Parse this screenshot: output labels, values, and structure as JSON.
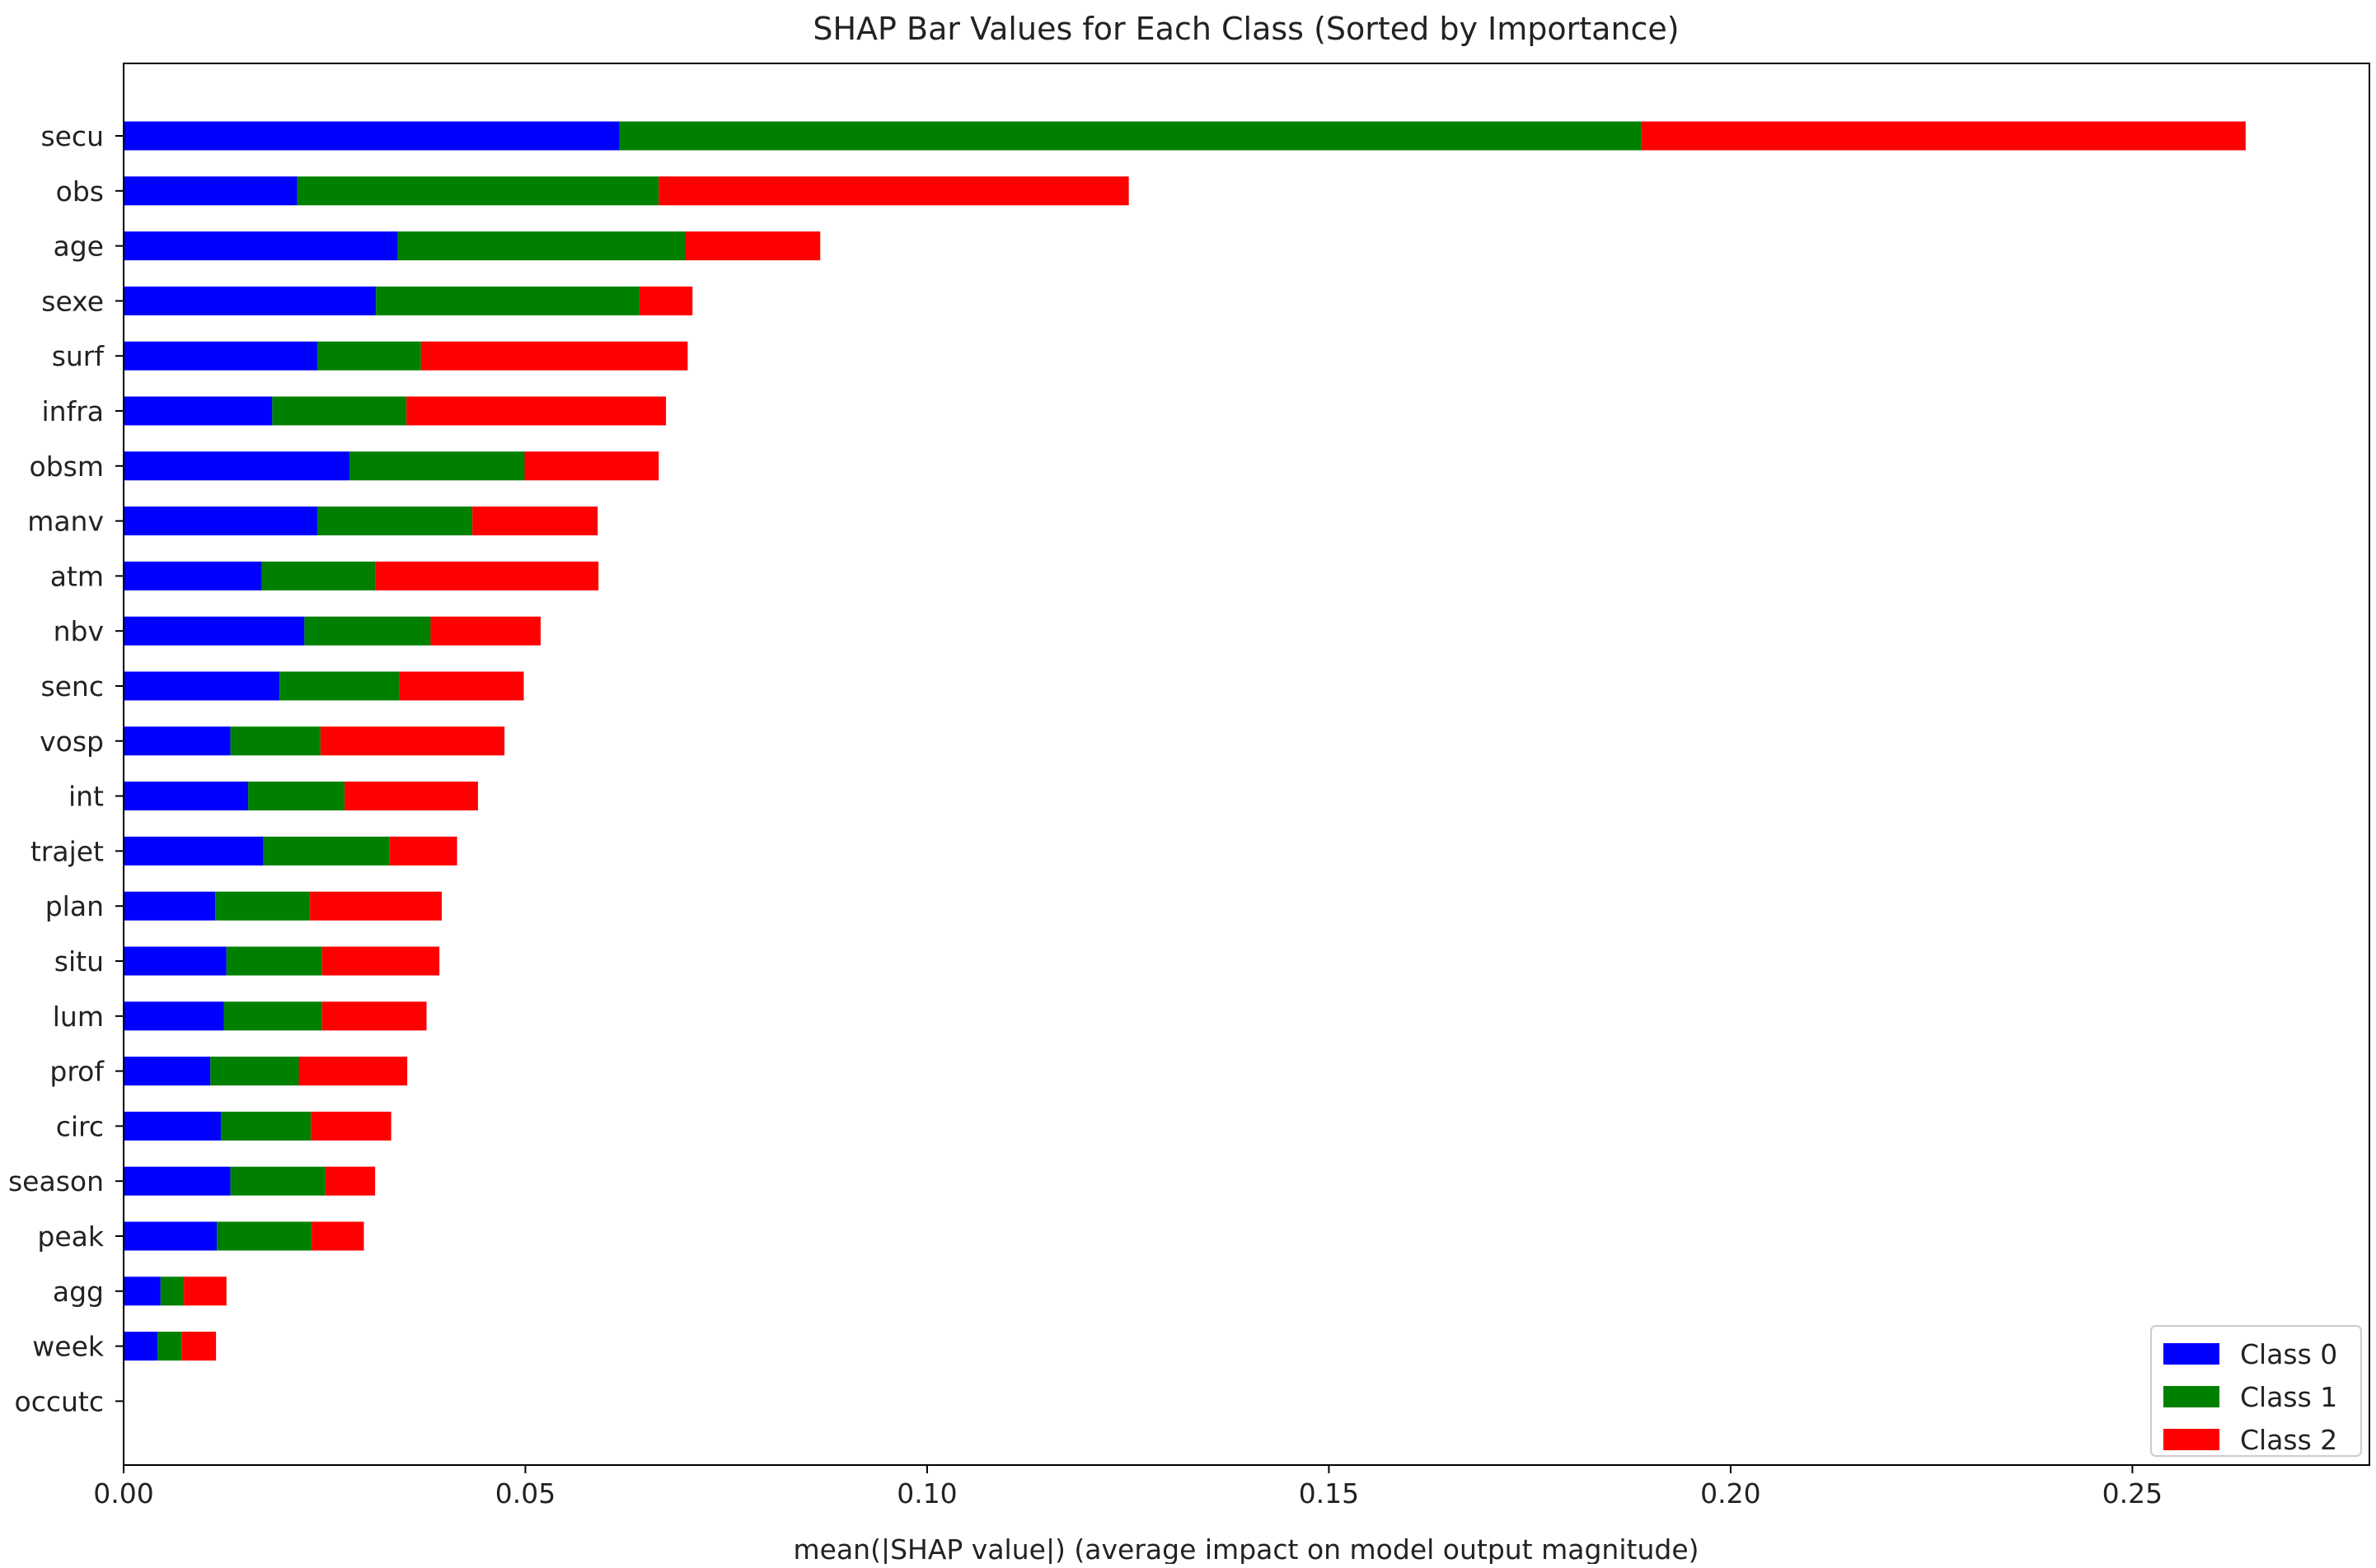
{
  "chart_data": {
    "type": "bar",
    "orientation": "horizontal",
    "stacked": true,
    "title": "SHAP Bar Values for Each Class (Sorted by Importance)",
    "xlabel": "mean(|SHAP value|) (average impact on model output magnitude)",
    "ylabel": "",
    "xlim": [
      0.0,
      0.2795
    ],
    "xticks": [
      0.0,
      0.05,
      0.1,
      0.15,
      0.2,
      0.25
    ],
    "xtick_labels": [
      "0.00",
      "0.05",
      "0.10",
      "0.15",
      "0.20",
      "0.25"
    ],
    "grid": false,
    "legend_position": "bottom-right",
    "categories": [
      "secu",
      "obs",
      "age",
      "sexe",
      "surf",
      "infra",
      "obsm",
      "manv",
      "atm",
      "nbv",
      "senc",
      "vosp",
      "int",
      "trajet",
      "plan",
      "situ",
      "lum",
      "prof",
      "circ",
      "season",
      "peak",
      "agg",
      "week",
      "occutc"
    ],
    "series": [
      {
        "name": "Class 0",
        "color": "#0000ff",
        "values": [
          0.0617,
          0.0216,
          0.0341,
          0.0314,
          0.0241,
          0.0185,
          0.0281,
          0.0241,
          0.0172,
          0.0225,
          0.0194,
          0.0133,
          0.0155,
          0.0174,
          0.0114,
          0.0128,
          0.0125,
          0.0108,
          0.0121,
          0.0133,
          0.0116,
          0.0046,
          0.0042,
          0.0
        ]
      },
      {
        "name": "Class 1",
        "color": "#008000",
        "values": [
          0.1272,
          0.045,
          0.0358,
          0.0328,
          0.0129,
          0.0167,
          0.0218,
          0.0193,
          0.0141,
          0.0157,
          0.0149,
          0.0112,
          0.012,
          0.0157,
          0.0118,
          0.0119,
          0.0122,
          0.011,
          0.0112,
          0.0118,
          0.0118,
          0.0029,
          0.003,
          0.0
        ]
      },
      {
        "name": "Class 2",
        "color": "#ff0000",
        "values": [
          0.0752,
          0.0585,
          0.0168,
          0.0066,
          0.0332,
          0.0323,
          0.0167,
          0.0156,
          0.0278,
          0.0137,
          0.0155,
          0.0229,
          0.0166,
          0.0084,
          0.0164,
          0.0146,
          0.013,
          0.0135,
          0.01,
          0.0062,
          0.0065,
          0.0053,
          0.0043,
          0.0
        ]
      }
    ]
  }
}
